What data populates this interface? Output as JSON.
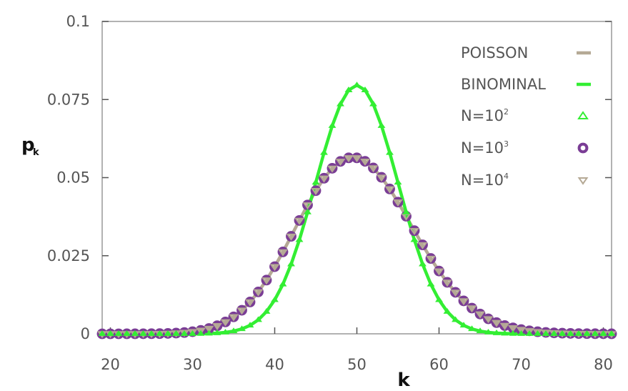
{
  "chart_data": {
    "type": "line",
    "xlabel": "k",
    "ylabel": {
      "base": "p",
      "sub": "k"
    },
    "xlim": [
      19,
      81
    ],
    "ylim": [
      0,
      0.1
    ],
    "xticks": [
      20,
      30,
      40,
      50,
      60,
      70,
      80
    ],
    "xtick_labels": [
      "20",
      "30",
      "40",
      "50",
      "60",
      "70",
      "80"
    ],
    "yticks": [
      0,
      0.025,
      0.05,
      0.075,
      0.1
    ],
    "ytick_labels": [
      "0",
      "0.025",
      "0.05",
      "0.075",
      "0.1"
    ],
    "grid": false,
    "legend_position": "top-right",
    "curves": [
      {
        "name": "POISSON",
        "kind": "poisson",
        "lambda": 50,
        "color": "#b5a995"
      },
      {
        "name": "BINOMINAL",
        "kind": "binomial",
        "n": 100,
        "p": 0.5,
        "color": "#33ee33"
      }
    ],
    "markers": [
      {
        "base": "N=10",
        "sup": "2",
        "kind": "binomial",
        "n": 100,
        "p": 0.5,
        "shape": "triangle-up",
        "color": "#33ee33"
      },
      {
        "base": "N=10",
        "sup": "3",
        "kind": "poisson",
        "lambda": 50,
        "shape": "circle",
        "color": "#7a3d95"
      },
      {
        "base": "N=10",
        "sup": "4",
        "kind": "poisson",
        "lambda": 50,
        "shape": "triangle-down",
        "color": "#b5a995"
      }
    ],
    "sample_k": [
      19,
      81
    ],
    "peak_values": {
      "binomial_k50": 0.0796,
      "poisson_k50": 0.0563
    }
  }
}
